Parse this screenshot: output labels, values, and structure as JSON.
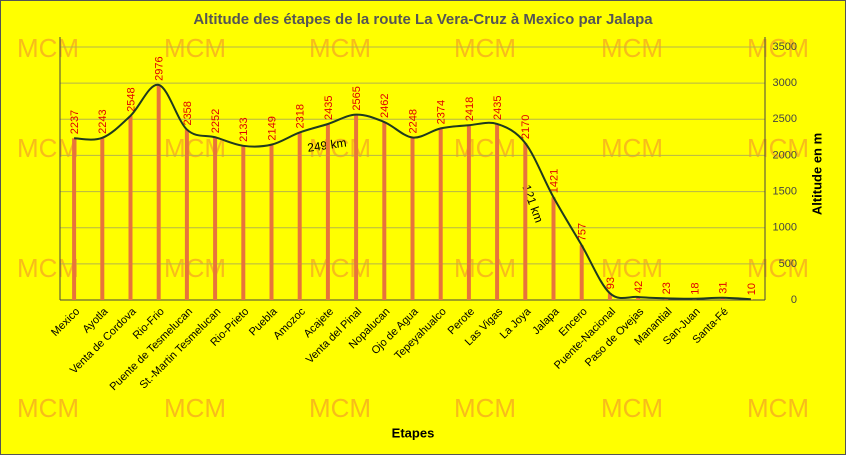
{
  "chart_data": {
    "type": "bar",
    "title": "Altitude des étapes de la route La Vera-Cruz à Mexico par Jalapa",
    "x_label": "Etapes",
    "y_label": "Altitude en m",
    "watermark": "MCM",
    "annotations": [
      "249 km",
      "121 km"
    ],
    "categories": [
      "Mexico",
      "Ayotla",
      "Venta de Cordova",
      "Rio-Frio",
      "Puente de Tesmelucan",
      "St.-Martin Tesmelucan",
      "Rio-Prieto",
      "Puebla",
      "Amozoc",
      "Acajete",
      "Venta del Pinal",
      "Nopalucan",
      "Ojo de Agua",
      "Tepeyahualco",
      "Perote",
      "Las Vigas",
      "La Joya",
      "Jalapa",
      "Encero",
      "Puente-Nacional",
      "Paso de Ovejas",
      "Manantial",
      "San-Juan",
      "Santa-Fé",
      null
    ],
    "values": [
      2237,
      2243,
      2548,
      2976,
      2358,
      2252,
      2133,
      2149,
      2318,
      2435,
      2565,
      2462,
      2248,
      2374,
      2418,
      2435,
      2170,
      1421,
      757,
      93,
      42,
      23,
      18,
      31,
      10
    ],
    "color": "#e8743b",
    "line_color": "#1f3a1f",
    "label_color": "#e00000",
    "ylim": [
      0,
      3500
    ],
    "yticks": [
      0,
      500,
      1000,
      1500,
      2000,
      2500,
      3000,
      3500
    ],
    "y_axis_side": "right",
    "grid": true
  }
}
